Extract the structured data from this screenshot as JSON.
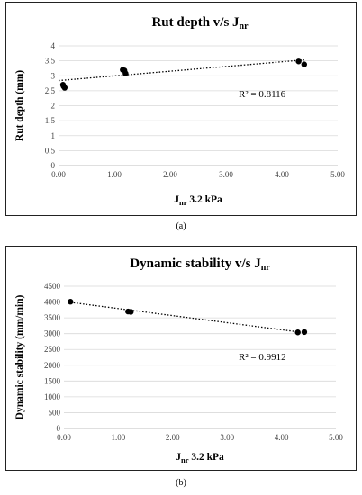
{
  "chart_data": [
    {
      "type": "scatter",
      "panel": "(a)",
      "title": "Rut depth v/s J",
      "title_sub": "nr",
      "xlabel": "J",
      "xlabel_sub": "nr",
      "xlabel_rest": " 3.2 kPa",
      "ylabel": "Rut depth (mm)",
      "xlim": [
        0,
        5
      ],
      "ylim": [
        0,
        4
      ],
      "x_ticks": [
        "0.00",
        "1.00",
        "2.00",
        "3.00",
        "4.00",
        "5.00"
      ],
      "y_ticks": [
        "0",
        "0.5",
        "1",
        "1.5",
        "2",
        "2.5",
        "3",
        "3.5",
        "4"
      ],
      "grid": true,
      "trendline": "linear",
      "r2_label": "R² = 0.8116",
      "points": [
        {
          "x": 0.08,
          "y": 2.7
        },
        {
          "x": 0.09,
          "y": 2.65
        },
        {
          "x": 0.11,
          "y": 2.6
        },
        {
          "x": 1.15,
          "y": 3.2
        },
        {
          "x": 1.18,
          "y": 3.18
        },
        {
          "x": 1.2,
          "y": 3.08
        },
        {
          "x": 4.3,
          "y": 3.48
        },
        {
          "x": 4.4,
          "y": 3.38
        }
      ],
      "trend": {
        "x": [
          0,
          4.4
        ],
        "y": [
          2.84,
          3.53
        ]
      }
    },
    {
      "type": "scatter",
      "panel": "(b)",
      "title": "Dynamic stability v/s J",
      "title_sub": "nr",
      "xlabel": "J",
      "xlabel_sub": "nr",
      "xlabel_rest": " 3.2 kPa",
      "ylabel": "Dynamic stability (mm/min)",
      "xlim": [
        0,
        5
      ],
      "ylim": [
        0,
        4500
      ],
      "x_ticks": [
        "0.00",
        "1.00",
        "2.00",
        "3.00",
        "4.00",
        "5.00"
      ],
      "y_ticks": [
        "0",
        "500",
        "1000",
        "1500",
        "2000",
        "2500",
        "3000",
        "3500",
        "4000",
        "4500"
      ],
      "grid": true,
      "trendline": "linear",
      "r2_label": "R² = 0.9912",
      "points": [
        {
          "x": 0.12,
          "y": 4010
        },
        {
          "x": 1.18,
          "y": 3700
        },
        {
          "x": 1.23,
          "y": 3690
        },
        {
          "x": 4.3,
          "y": 3040
        },
        {
          "x": 4.42,
          "y": 3050
        }
      ],
      "trend": {
        "x": [
          0.12,
          4.42
        ],
        "y": [
          3990,
          3030
        ]
      }
    }
  ],
  "captions": [
    "(a)",
    "(b)"
  ]
}
